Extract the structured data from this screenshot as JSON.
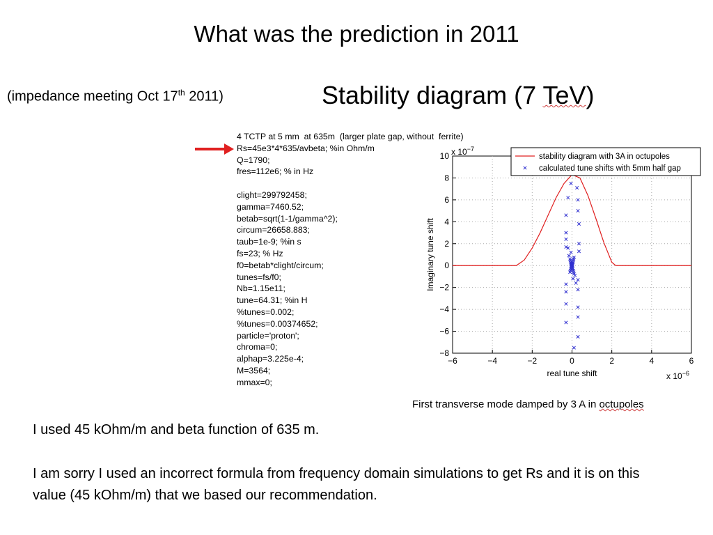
{
  "slide": {
    "title": "What was the prediction in 2011",
    "subtitle_pre": "(impedance meeting Oct 17",
    "subtitle_sup": "th",
    "subtitle_post": " 2011)",
    "stability_title_pre": "Stability diagram (7 ",
    "stability_title_tev": "TeV",
    "stability_title_post": ")"
  },
  "code_lines": [
    "4 TCTP at 5 mm  at 635m  (larger plate gap, without  ferrite)",
    "Rs=45e3*4*635/avbeta; %in Ohm/m",
    "Q=1790;",
    "fres=112e6; % in Hz",
    "",
    "clight=299792458;",
    "gamma=7460.52;",
    "betab=sqrt(1-1/gamma^2);",
    "circum=26658.883;",
    "taub=1e-9; %in s",
    "fs=23; % Hz",
    "f0=betab*clight/circum;",
    "tunes=fs/f0;",
    "Nb=1.15e11;",
    "tune=64.31; %in H",
    "%tunes=0.002;",
    "%tunes=0.00374652;",
    "particle='proton';",
    "chroma=0;",
    "alphap=3.225e-4;",
    "M=3564;",
    "mmax=0;"
  ],
  "caption": {
    "pre": "First transverse mode damped by 3 A in ",
    "underlined": "octupoles"
  },
  "notes": {
    "line1": "I used 45 kOhm/m and beta function of 635 m.",
    "line2": "I am sorry I used an incorrect formula from frequency domain simulations to get Rs and it is on this value (45 kOhm/m) that we based our recommendation."
  },
  "colors": {
    "curve": "#e02020",
    "points": "#3030d0",
    "arrow": "#e02020"
  },
  "chart_data": {
    "type": "scatter",
    "title": "",
    "xlabel": "real tune shift",
    "ylabel": "Imaginary tune shift",
    "x_exponent_label": "x 10",
    "x_exponent": "−6",
    "y_exponent_label": "x 10",
    "y_exponent": "−7",
    "xlim": [
      -6,
      6
    ],
    "ylim": [
      -8,
      10
    ],
    "x_ticks": [
      -6,
      -4,
      -2,
      0,
      2,
      4,
      6
    ],
    "y_ticks": [
      -8,
      -6,
      -4,
      -2,
      0,
      2,
      4,
      6,
      8,
      10
    ],
    "x_tick_labels": [
      "−6",
      "−4",
      "−2",
      "0",
      "2",
      "4",
      "6"
    ],
    "y_tick_labels": [
      "−8",
      "−6",
      "−4",
      "−2",
      "0",
      "2",
      "4",
      "6",
      "8",
      "10"
    ],
    "grid": true,
    "legend_position": "top-right",
    "series": [
      {
        "name": "stability diagram with 3A in octupoles",
        "kind": "line",
        "x": [
          -6,
          -3.5,
          -2.8,
          -2.4,
          -2.0,
          -1.6,
          -1.2,
          -0.8,
          -0.4,
          0.0,
          0.4,
          0.8,
          1.2,
          1.6,
          2.0,
          2.2,
          6
        ],
        "y": [
          0,
          0,
          0,
          0.5,
          1.6,
          3.0,
          4.6,
          6.2,
          7.5,
          8.3,
          8.0,
          6.4,
          4.3,
          2.1,
          0.3,
          0,
          0
        ]
      },
      {
        "name": "calculated tune shifts with 5mm half gap",
        "kind": "scatter",
        "x": [
          -0.1,
          -0.08,
          -0.06,
          -0.05,
          -0.04,
          -0.03,
          -0.02,
          -0.01,
          0.0,
          0.01,
          0.02,
          0.03,
          0.05,
          0.06,
          0.08,
          0.1,
          -0.1,
          -0.08,
          -0.06,
          -0.04,
          -0.02,
          0.0,
          0.02,
          0.04,
          0.06,
          0.08,
          0.1,
          -0.15,
          -0.05,
          0.05,
          0.15,
          -0.2,
          0.2,
          -0.3,
          -0.3,
          -0.3,
          -0.3,
          -0.3,
          -0.3,
          -0.3,
          -0.3,
          0.3,
          0.3,
          0.35,
          0.35,
          0.35,
          0.3,
          0.3,
          0.3,
          0.3,
          0.3,
          0.25,
          -0.2,
          -0.05,
          0.1
        ],
        "y": [
          0.6,
          0.45,
          0.3,
          0.2,
          0.1,
          0.05,
          0.0,
          -0.05,
          0.0,
          0.05,
          0.1,
          0.2,
          0.3,
          0.45,
          0.6,
          0.75,
          -0.6,
          -0.45,
          -0.3,
          -0.15,
          -0.05,
          -0.1,
          -0.2,
          -0.3,
          -0.45,
          -0.6,
          -0.75,
          0.9,
          1.2,
          -1.2,
          -0.9,
          1.6,
          -1.6,
          4.6,
          3.0,
          1.7,
          -1.7,
          -3.5,
          -5.2,
          -2.4,
          2.4,
          6.0,
          5.0,
          3.8,
          2.0,
          1.3,
          -1.3,
          -2.2,
          -3.8,
          -4.7,
          -6.5,
          7.1,
          6.2,
          7.5,
          -7.5
        ]
      }
    ]
  }
}
